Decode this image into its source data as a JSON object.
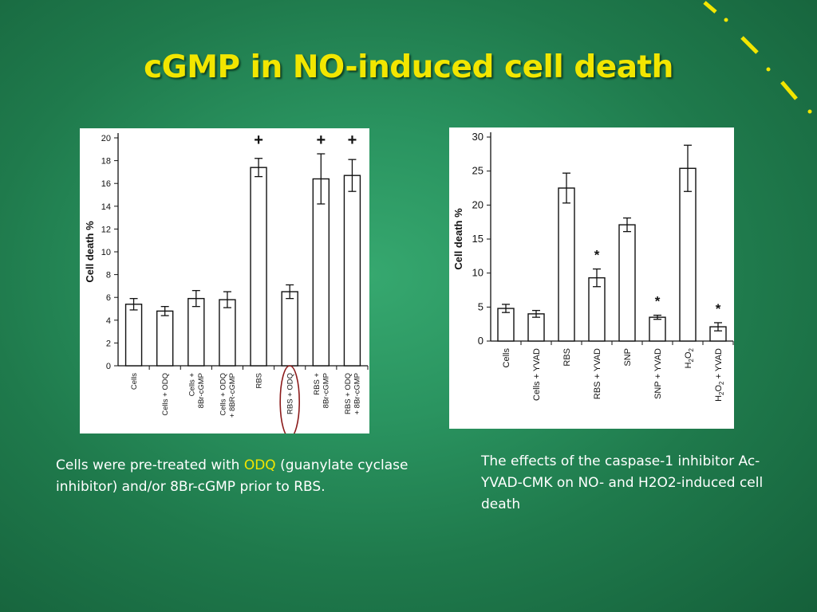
{
  "slide": {
    "title": "cGMP in NO-induced cell death"
  },
  "captions": {
    "left_pre": "Cells were pre-treated with ",
    "left_highlight": "ODQ",
    "left_post": " (guanylate cyclase inhibitor) and/or 8Br-cGMP prior to RBS.",
    "right": "The effects of the caspase-1 inhibitor Ac-YVAD-CMK on NO- and H2O2-induced cell death"
  },
  "colors": {
    "title": "#f2e600",
    "highlight": "#f2e600",
    "circle": "#8b1a1a",
    "decoration": "#f2e600"
  },
  "chart_data": [
    {
      "type": "bar",
      "ylabel": "Cell death %",
      "ylim": [
        0,
        20
      ],
      "yticks": [
        0,
        2,
        4,
        6,
        8,
        10,
        12,
        14,
        16,
        18,
        20
      ],
      "categories": [
        [
          "Cells"
        ],
        [
          "Cells + ODQ"
        ],
        [
          "Cells +",
          "8Br-cGMP"
        ],
        [
          "Cells + ODQ",
          "+ 8BR-cGMP"
        ],
        [
          "RBS"
        ],
        [
          "RBS + ODQ"
        ],
        [
          "RBS +",
          "8Br-cGMP"
        ],
        [
          "RBS + ODQ",
          "+ 8Br-cGMP"
        ]
      ],
      "values": [
        5.4,
        4.8,
        5.9,
        5.8,
        17.4,
        6.5,
        16.4,
        16.7
      ],
      "errors": [
        0.5,
        0.4,
        0.7,
        0.7,
        0.8,
        0.6,
        2.2,
        1.4
      ],
      "annotations": [
        "",
        "",
        "",
        "",
        "+",
        "",
        "+",
        "+"
      ],
      "circled_category": 5
    },
    {
      "type": "bar",
      "ylabel": "Cell death %",
      "ylim": [
        0,
        30
      ],
      "yticks": [
        0,
        5,
        10,
        15,
        20,
        25,
        30
      ],
      "categories": [
        "Cells",
        "Cells + YVAD",
        "RBS",
        "RBS + YVAD",
        "SNP",
        "SNP + YVAD",
        "H2O2",
        "H2O2 + YVAD"
      ],
      "values": [
        4.8,
        4.0,
        22.5,
        9.3,
        17.1,
        3.5,
        25.4,
        2.1
      ],
      "errors": [
        0.6,
        0.5,
        2.2,
        1.3,
        1.0,
        0.3,
        3.4,
        0.6
      ],
      "annotations": [
        "",
        "",
        "",
        "*",
        "",
        "*",
        "",
        "*"
      ]
    }
  ]
}
